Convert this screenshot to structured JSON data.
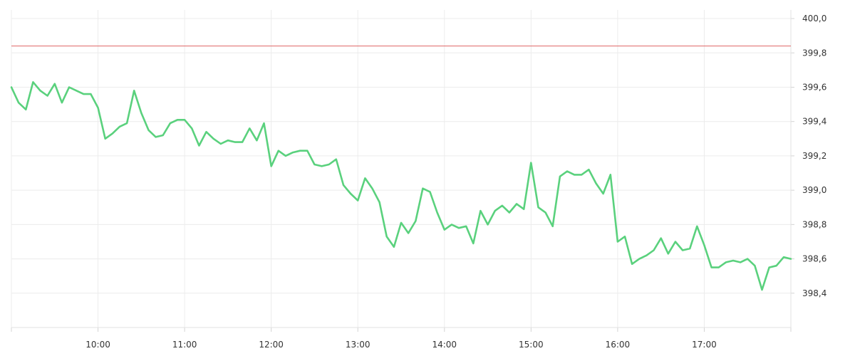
{
  "chart_data": {
    "type": "line",
    "title": "",
    "xlabel": "",
    "ylabel": "",
    "x_ticks": [
      "10:00",
      "11:00",
      "12:00",
      "13:00",
      "14:00",
      "15:00",
      "16:00",
      "17:00"
    ],
    "y_ticks": [
      "400,0",
      "399,8",
      "399,6",
      "399,4",
      "399,2",
      "399,0",
      "398,8",
      "398,6",
      "398,4"
    ],
    "xlim": [
      "09:00",
      "18:00"
    ],
    "ylim": [
      398.2,
      400.05
    ],
    "grid": true,
    "y_axis_side": "right",
    "reference_line": {
      "value": 399.84,
      "color": "#e06666"
    },
    "series": [
      {
        "color": "#5ad17d",
        "points": [
          [
            "09:00",
            399.6
          ],
          [
            "09:05",
            399.51
          ],
          [
            "09:10",
            399.47
          ],
          [
            "09:15",
            399.63
          ],
          [
            "09:20",
            399.58
          ],
          [
            "09:25",
            399.55
          ],
          [
            "09:30",
            399.62
          ],
          [
            "09:35",
            399.51
          ],
          [
            "09:40",
            399.6
          ],
          [
            "09:45",
            399.58
          ],
          [
            "09:50",
            399.56
          ],
          [
            "09:55",
            399.56
          ],
          [
            "10:00",
            399.48
          ],
          [
            "10:05",
            399.3
          ],
          [
            "10:10",
            399.33
          ],
          [
            "10:15",
            399.37
          ],
          [
            "10:20",
            399.39
          ],
          [
            "10:25",
            399.58
          ],
          [
            "10:30",
            399.45
          ],
          [
            "10:35",
            399.35
          ],
          [
            "10:40",
            399.31
          ],
          [
            "10:45",
            399.32
          ],
          [
            "10:50",
            399.39
          ],
          [
            "10:55",
            399.41
          ],
          [
            "11:00",
            399.41
          ],
          [
            "11:05",
            399.36
          ],
          [
            "11:10",
            399.26
          ],
          [
            "11:15",
            399.34
          ],
          [
            "11:20",
            399.3
          ],
          [
            "11:25",
            399.27
          ],
          [
            "11:30",
            399.29
          ],
          [
            "11:35",
            399.28
          ],
          [
            "11:40",
            399.28
          ],
          [
            "11:45",
            399.36
          ],
          [
            "11:50",
            399.29
          ],
          [
            "11:55",
            399.39
          ],
          [
            "12:00",
            399.14
          ],
          [
            "12:05",
            399.23
          ],
          [
            "12:10",
            399.2
          ],
          [
            "12:15",
            399.22
          ],
          [
            "12:20",
            399.23
          ],
          [
            "12:25",
            399.23
          ],
          [
            "12:30",
            399.15
          ],
          [
            "12:35",
            399.14
          ],
          [
            "12:40",
            399.15
          ],
          [
            "12:45",
            399.18
          ],
          [
            "12:50",
            399.03
          ],
          [
            "12:55",
            398.98
          ],
          [
            "13:00",
            398.94
          ],
          [
            "13:05",
            399.07
          ],
          [
            "13:10",
            399.01
          ],
          [
            "13:15",
            398.93
          ],
          [
            "13:20",
            398.73
          ],
          [
            "13:25",
            398.67
          ],
          [
            "13:30",
            398.81
          ],
          [
            "13:35",
            398.75
          ],
          [
            "13:40",
            398.82
          ],
          [
            "13:45",
            399.01
          ],
          [
            "13:50",
            398.99
          ],
          [
            "13:55",
            398.87
          ],
          [
            "14:00",
            398.77
          ],
          [
            "14:05",
            398.8
          ],
          [
            "14:10",
            398.78
          ],
          [
            "14:15",
            398.79
          ],
          [
            "14:20",
            398.69
          ],
          [
            "14:25",
            398.88
          ],
          [
            "14:30",
            398.8
          ],
          [
            "14:35",
            398.88
          ],
          [
            "14:40",
            398.91
          ],
          [
            "14:45",
            398.87
          ],
          [
            "14:50",
            398.92
          ],
          [
            "14:55",
            398.89
          ],
          [
            "15:00",
            399.16
          ],
          [
            "15:05",
            398.9
          ],
          [
            "15:10",
            398.87
          ],
          [
            "15:15",
            398.79
          ],
          [
            "15:20",
            399.08
          ],
          [
            "15:25",
            399.11
          ],
          [
            "15:30",
            399.09
          ],
          [
            "15:35",
            399.09
          ],
          [
            "15:40",
            399.12
          ],
          [
            "15:45",
            399.04
          ],
          [
            "15:50",
            398.98
          ],
          [
            "15:55",
            399.09
          ],
          [
            "16:00",
            398.7
          ],
          [
            "16:05",
            398.73
          ],
          [
            "16:10",
            398.57
          ],
          [
            "16:15",
            398.6
          ],
          [
            "16:20",
            398.62
          ],
          [
            "16:25",
            398.65
          ],
          [
            "16:30",
            398.72
          ],
          [
            "16:35",
            398.63
          ],
          [
            "16:40",
            398.7
          ],
          [
            "16:45",
            398.65
          ],
          [
            "16:50",
            398.66
          ],
          [
            "16:55",
            398.79
          ],
          [
            "17:00",
            398.68
          ],
          [
            "17:05",
            398.55
          ],
          [
            "17:10",
            398.55
          ],
          [
            "17:15",
            398.58
          ],
          [
            "17:20",
            398.59
          ],
          [
            "17:25",
            398.58
          ],
          [
            "17:30",
            398.6
          ],
          [
            "17:35",
            398.56
          ],
          [
            "17:40",
            398.42
          ],
          [
            "17:45",
            398.55
          ],
          [
            "17:50",
            398.56
          ],
          [
            "17:55",
            398.61
          ],
          [
            "18:00",
            398.6
          ]
        ]
      }
    ]
  }
}
